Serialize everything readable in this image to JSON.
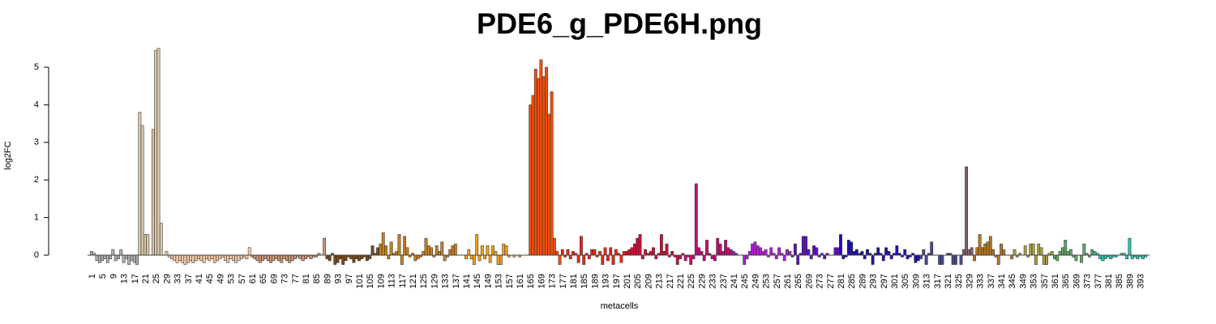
{
  "chart_data": {
    "type": "bar",
    "title": "PDE6_g_PDE6H.png",
    "x_label": "metacells",
    "y_label": "log2FC",
    "ylim": [
      -0.3,
      5.5
    ],
    "yticks": [
      0,
      1,
      2,
      3,
      4,
      5
    ],
    "categories": [
      "1",
      null,
      null,
      null,
      "5",
      null,
      null,
      null,
      "9",
      null,
      null,
      null,
      "13",
      null,
      null,
      null,
      "17",
      null,
      null,
      null,
      "21",
      null,
      null,
      null,
      "25",
      null,
      null,
      null,
      "29",
      null,
      null,
      null,
      "33",
      null,
      null,
      null,
      "37",
      null,
      null,
      null,
      "41",
      null,
      null,
      null,
      "45",
      null,
      null,
      null,
      "49",
      null,
      null,
      null,
      "53",
      null,
      null,
      null,
      "57",
      null,
      null,
      null,
      "61",
      null,
      null,
      null,
      "65",
      null,
      null,
      null,
      "69",
      null,
      null,
      null,
      "73",
      null,
      null,
      null,
      "77",
      null,
      null,
      null,
      "81",
      null,
      null,
      null,
      "85",
      null,
      null,
      null,
      "89",
      null,
      null,
      null,
      "93",
      null,
      null,
      null,
      "97",
      null,
      null,
      null,
      "101",
      null,
      null,
      null,
      "105",
      null,
      null,
      null,
      "109",
      null,
      null,
      null,
      "113",
      null,
      null,
      null,
      "117",
      null,
      null,
      null,
      "121",
      null,
      null,
      null,
      "125",
      null,
      null,
      null,
      "129",
      null,
      null,
      null,
      "133",
      null,
      null,
      null,
      "137",
      null,
      null,
      null,
      "141",
      null,
      null,
      null,
      "145",
      null,
      null,
      null,
      "149",
      null,
      null,
      null,
      "153",
      null,
      null,
      null,
      "157",
      null,
      null,
      null,
      "161",
      null,
      null,
      null,
      "165",
      null,
      null,
      null,
      "169",
      null,
      null,
      null,
      "173",
      null,
      null,
      null,
      "177",
      null,
      null,
      null,
      "181",
      null,
      null,
      null,
      "185",
      null,
      null,
      null,
      "189",
      null,
      null,
      null,
      "193",
      null,
      null,
      null,
      "197",
      null,
      null,
      null,
      "201",
      null,
      null,
      null,
      "205",
      null,
      null,
      null,
      "209",
      null,
      null,
      null,
      "213",
      null,
      null,
      null,
      "217",
      null,
      null,
      null,
      "221",
      null,
      null,
      null,
      "225",
      null,
      null,
      null,
      "229",
      null,
      null,
      null,
      "233",
      null,
      null,
      null,
      "237",
      null,
      null,
      null,
      "241",
      null,
      null,
      null,
      "245",
      null,
      null,
      null,
      "249",
      null,
      null,
      null,
      "253",
      null,
      null,
      null,
      "257",
      null,
      null,
      null,
      "261",
      null,
      null,
      null,
      "265",
      null,
      null,
      null,
      "269",
      null,
      null,
      null,
      "273",
      null,
      null,
      null,
      "277",
      null,
      null,
      null,
      "281",
      null,
      null,
      null,
      "285",
      null,
      null,
      null,
      "289",
      null,
      null,
      null,
      "293",
      null,
      null,
      null,
      "297",
      null,
      null,
      null,
      "301",
      null,
      null,
      null,
      "305",
      null,
      null,
      null,
      "309",
      null,
      null,
      null,
      "313",
      null,
      null,
      null,
      "317",
      null,
      null,
      null,
      "321",
      null,
      null,
      null,
      "325",
      null,
      null,
      null,
      "329",
      null,
      null,
      null,
      "333",
      null,
      null,
      null,
      "337",
      null,
      null,
      null,
      "341",
      null,
      null,
      null,
      "345",
      null,
      null,
      null,
      "349",
      null,
      null,
      null,
      "353",
      null,
      null,
      null,
      "357",
      null,
      null,
      null,
      "361",
      null,
      null,
      null,
      "365",
      null,
      null,
      null,
      "369",
      null,
      null,
      null,
      "373",
      null,
      null,
      null,
      "377",
      null,
      null,
      null,
      "381",
      null,
      null,
      null,
      "385",
      null,
      null,
      null,
      "389",
      null,
      null,
      null,
      "393",
      null,
      null
    ],
    "values": [
      0.1,
      0.05,
      -0.15,
      -0.2,
      -0.15,
      -0.1,
      -0.2,
      -0.1,
      0.15,
      -0.15,
      -0.1,
      0.15,
      -0.2,
      -0.1,
      -0.25,
      -0.15,
      -0.2,
      -0.25,
      3.8,
      3.45,
      0.55,
      0.55,
      0,
      3.35,
      5.45,
      5.5,
      0.85,
      0,
      0.1,
      -0.05,
      -0.1,
      -0.15,
      -0.2,
      -0.15,
      -0.2,
      -0.25,
      -0.2,
      -0.15,
      -0.2,
      -0.15,
      -0.1,
      -0.15,
      -0.2,
      -0.1,
      -0.15,
      -0.1,
      -0.2,
      -0.15,
      -0.1,
      -0.05,
      -0.15,
      -0.2,
      -0.1,
      -0.15,
      -0.2,
      -0.15,
      -0.1,
      -0.05,
      -0.1,
      0.2,
      -0.05,
      -0.1,
      -0.15,
      -0.2,
      -0.15,
      -0.1,
      -0.15,
      -0.2,
      -0.15,
      -0.1,
      -0.15,
      -0.2,
      -0.1,
      -0.15,
      -0.2,
      -0.15,
      -0.1,
      -0.05,
      -0.1,
      -0.15,
      -0.1,
      -0.05,
      -0.1,
      -0.05,
      -0.05,
      0.05,
      0,
      0.45,
      -0.1,
      -0.15,
      0.05,
      -0.25,
      -0.2,
      -0.1,
      -0.25,
      -0.15,
      -0.05,
      -0.1,
      -0.2,
      -0.1,
      -0.15,
      -0.1,
      -0.05,
      -0.15,
      -0.1,
      0.25,
      0.05,
      0.2,
      0.3,
      0.6,
      0.25,
      -0.1,
      0.35,
      0.05,
      0.1,
      0.55,
      -0.25,
      0.5,
      0.2,
      -0.05,
      0.05,
      -0.15,
      -0.1,
      -0.05,
      0.1,
      0.45,
      0.25,
      0.2,
      -0.05,
      0.25,
      0.1,
      0.35,
      -0.15,
      -0.05,
      0.15,
      0.25,
      0.3,
      0,
      0,
      0,
      -0.1,
      0.15,
      -0.1,
      -0.25,
      0.55,
      -0.15,
      0.25,
      -0.1,
      0.25,
      -0.2,
      0.25,
      0.1,
      -0.25,
      -0.25,
      0.3,
      0.25,
      -0.05,
      0,
      -0.05,
      0,
      -0.05,
      0,
      0,
      0,
      4.0,
      4.25,
      4.95,
      4.7,
      5.2,
      4.75,
      5.0,
      3.75,
      4.35,
      0.45,
      0.1,
      -0.25,
      0.15,
      -0.05,
      0.15,
      -0.1,
      0.1,
      0.05,
      -0.2,
      0.5,
      -0.25,
      0.05,
      -0.1,
      0.15,
      0.15,
      -0.05,
      0.1,
      -0.25,
      0.2,
      -0.15,
      0.2,
      -0.25,
      0.15,
      0.05,
      -0.2,
      0.1,
      0.1,
      0.15,
      0.2,
      0.3,
      0.45,
      0.55,
      -0.1,
      0.15,
      0.05,
      0.1,
      0.2,
      -0.1,
      0.05,
      0.55,
      0.1,
      0.3,
      -0.05,
      0.1,
      -0.05,
      -0.25,
      -0.1,
      0.05,
      -0.15,
      -0.05,
      -0.25,
      -0.1,
      1.9,
      0.2,
      0.1,
      -0.15,
      0.4,
      0.05,
      -0.1,
      -0.15,
      0.45,
      0.3,
      0.1,
      0.4,
      0.2,
      0.15,
      0.1,
      0.05,
      0,
      0,
      -0.25,
      -0.1,
      0.1,
      0.3,
      0.35,
      0.25,
      0.2,
      0.1,
      0.15,
      -0.05,
      0.2,
      0.05,
      -0.1,
      0.2,
      0.05,
      -0.15,
      0.15,
      0.1,
      -0.05,
      0.3,
      -0.25,
      0.05,
      0.5,
      0.5,
      0.15,
      -0.1,
      0.25,
      0.2,
      -0.05,
      0.05,
      -0.1,
      0.05,
      0,
      0,
      0.2,
      0.2,
      0.55,
      -0.1,
      -0.05,
      0.4,
      0.35,
      0.1,
      0.15,
      0.05,
      0.1,
      -0.1,
      0.15,
      0.05,
      -0.25,
      0.05,
      0.2,
      0.05,
      -0.15,
      0.2,
      0.1,
      -0.1,
      0.05,
      0.25,
      0.05,
      -0.05,
      0.15,
      -0.1,
      -0.05,
      0.05,
      -0.2,
      -0.15,
      -0.1,
      0.15,
      -0.25,
      0.05,
      0.35,
      0,
      0,
      -0.25,
      -0.25,
      0,
      0.05,
      0.05,
      -0.25,
      -0.25,
      0,
      -0.25,
      0.15,
      2.35,
      0.15,
      0.2,
      -0.15,
      0.2,
      0.55,
      0.2,
      0.3,
      0.35,
      0.5,
      0.15,
      -0.05,
      -0.25,
      0.3,
      0.15,
      0,
      0,
      -0.1,
      0.15,
      -0.05,
      0.05,
      0,
      0.25,
      -0.05,
      0.3,
      0.3,
      -0.25,
      0.3,
      0.2,
      -0.25,
      -0.25,
      0.05,
      0.1,
      -0.1,
      -0.15,
      0.1,
      0.2,
      0.4,
      0.1,
      0.15,
      -0.05,
      -0.15,
      0,
      -0.2,
      0.3,
      0.05,
      -0.05,
      0.15,
      0.1,
      0.05,
      -0.1,
      -0.15,
      -0.1,
      -0.05,
      -0.1,
      -0.05,
      -0.05,
      0,
      0.05,
      0.05,
      -0.1,
      0.45,
      -0.1,
      -0.05,
      -0.1,
      -0.05,
      -0.1,
      -0.05
    ],
    "colors": [
      "#b0b0b0",
      "#b0b0b0",
      "#b0b0b0",
      "#b0b0b0",
      "#b0b0b0",
      "#b0b0b0",
      "#b0b0b0",
      "#b0b0b0",
      "#b0b0b0",
      "#b0b0b0",
      "#b0b0b0",
      "#b0b0b0",
      "#b0b0b0",
      "#b0b0b0",
      "#b0b0b0",
      "#b0b0b0",
      "#b0b0b0",
      "#b0b0b0",
      "#d8c8a8",
      "#d8c8a8",
      "#d8c8a8",
      "#d8c8a8",
      "#d8c8a8",
      "#d8c8a8",
      "#d8c8a8",
      "#d8c8a8",
      "#d8c8a8",
      "#d8c8a8",
      "#f0c8a8",
      "#f0c8a8",
      "#f0c8a8",
      "#f0c8a8",
      "#f0c8a8",
      "#f0c8a8",
      "#f0c8a8",
      "#f0c8a8",
      "#f0c8a8",
      "#f0c8a8",
      "#f0c8a8",
      "#f0c8a8",
      "#f0c8a8",
      "#f0c8a8",
      "#f0c8a8",
      "#f0c8a8",
      "#f0c8a8",
      "#f0c8a8",
      "#f0c8a8",
      "#f0c8a8",
      "#f0c8a8",
      "#f0c8a8",
      "#f0c8a8",
      "#f0c8a8",
      "#f0c8a8",
      "#f0c8a8",
      "#f0c8a8",
      "#f0c8a8",
      "#f0c8a8",
      "#f0c8a8",
      "#f0c8a8",
      "#f0c8a8",
      "#c89878",
      "#c89878",
      "#c89878",
      "#c89878",
      "#c89878",
      "#c89878",
      "#c89878",
      "#c89878",
      "#c89878",
      "#c89878",
      "#c89878",
      "#c89878",
      "#c89878",
      "#c89878",
      "#c89878",
      "#c89878",
      "#c89878",
      "#c89878",
      "#c89878",
      "#c89878",
      "#c89878",
      "#c89878",
      "#c89878",
      "#c89878",
      "#c89878",
      "#c89878",
      "#c89878",
      "#c89878",
      "#7a4a20",
      "#7a4a20",
      "#7a4a20",
      "#7a4a20",
      "#7a4a20",
      "#7a4a20",
      "#7a4a20",
      "#7a4a20",
      "#7a4a20",
      "#7a4a20",
      "#7a4a20",
      "#7a4a20",
      "#7a4a20",
      "#7a4a20",
      "#7a4a20",
      "#7a4a20",
      "#7a4a20",
      "#7a4a20",
      "#7a4a20",
      "#7a4a20",
      "#c88020",
      "#c88020",
      "#c88020",
      "#c88020",
      "#c88020",
      "#c88020",
      "#c88020",
      "#c88020",
      "#c88020",
      "#c88020",
      "#c88020",
      "#c88020",
      "#c88020",
      "#c88020",
      "#c88020",
      "#c88020",
      "#c88020",
      "#c88020",
      "#c88020",
      "#c88020",
      "#c88020",
      "#c88020",
      "#c88020",
      "#c88020",
      "#c88020",
      "#c88020",
      "#c88020",
      "#c88020",
      "#c88020",
      "#c88020",
      "#c88020",
      "#c88020",
      "#f0a020",
      "#f0a020",
      "#f0a020",
      "#f0a020",
      "#f0a020",
      "#f0a020",
      "#f0a020",
      "#f0a020",
      "#f0a020",
      "#f0a020",
      "#f0a020",
      "#f0a020",
      "#f0a020",
      "#f0a020",
      "#f0a020",
      "#f0a020",
      "#f0a020",
      "#f0a020",
      "#f0a020",
      "#f0a020",
      "#f0a020",
      "#f0a020",
      "#f0a020",
      "#f0a020",
      "#f05010",
      "#f05010",
      "#f05010",
      "#f05010",
      "#f05010",
      "#f05010",
      "#f05010",
      "#f05010",
      "#f05010",
      "#f05010",
      "#f05010",
      "#f05010",
      "#e82818",
      "#e82818",
      "#e82818",
      "#e82818",
      "#e82818",
      "#e82818",
      "#e82818",
      "#e82818",
      "#e82818",
      "#e82818",
      "#e82818",
      "#e82818",
      "#e82818",
      "#e82818",
      "#e82818",
      "#e82818",
      "#e82818",
      "#e82818",
      "#e82818",
      "#e82818",
      "#e82818",
      "#e82818",
      "#e82818",
      "#e82818",
      "#d01038",
      "#d01038",
      "#d01038",
      "#d01038",
      "#d01038",
      "#d01038",
      "#d01038",
      "#d01038",
      "#d01038",
      "#d01038",
      "#d01038",
      "#d01038",
      "#d01038",
      "#d01038",
      "#d01038",
      "#d01038",
      "#d01038",
      "#d01038",
      "#d01038",
      "#d01038",
      "#c01070",
      "#c01070",
      "#c01070",
      "#c01070",
      "#c01070",
      "#c01070",
      "#c01070",
      "#c01070",
      "#c01070",
      "#c01070",
      "#c01070",
      "#c01070",
      "#c01070",
      "#c01070",
      "#c01070",
      "#c01070",
      "#c01070",
      "#c01070",
      "#c01070",
      "#c01070",
      "#b020d0",
      "#b020d0",
      "#b020d0",
      "#b020d0",
      "#b020d0",
      "#b020d0",
      "#b020d0",
      "#b020d0",
      "#b020d0",
      "#b020d0",
      "#b020d0",
      "#b020d0",
      "#b020d0",
      "#b020d0",
      "#b020d0",
      "#b020d0",
      "#b020d0",
      "#b020d0",
      "#b020d0",
      "#b020d0",
      "#b020d0",
      "#b020d0",
      "#6010c8",
      "#6010c8",
      "#6010c8",
      "#6010c8",
      "#6010c8",
      "#6010c8",
      "#6010c8",
      "#6010c8",
      "#6010c8",
      "#6010c8",
      "#6010c8",
      "#6010c8",
      "#6010c8",
      "#6010c8",
      "#6010c8",
      "#6010c8",
      "#6010c8",
      "#6010c8",
      "#2010b0",
      "#2010b0",
      "#2010b0",
      "#2010b0",
      "#2010b0",
      "#2010b0",
      "#2010b0",
      "#2010b0",
      "#2010b0",
      "#2010b0",
      "#2010b0",
      "#2010b0",
      "#2010b0",
      "#2010b0",
      "#2010b0",
      "#2010b0",
      "#2010b0",
      "#2010b0",
      "#2010b0",
      "#2010b0",
      "#2010b0",
      "#2010b0",
      "#2010b0",
      "#2010b0",
      "#2010b0",
      "#2010b0",
      "#2010b0",
      "#2010b0",
      "#2010b0",
      "#2010b0",
      "#484890",
      "#484890",
      "#484890",
      "#484890",
      "#484890",
      "#484890",
      "#484890",
      "#484890",
      "#484890",
      "#484890",
      "#484890",
      "#484890",
      "#484890",
      "#484890",
      "#484890",
      "#484890",
      "#806070",
      "#806070",
      "#806070",
      "#806070",
      "#b07828",
      "#b07828",
      "#b07828",
      "#b07828",
      "#b07828",
      "#b07828",
      "#b07828",
      "#b07828",
      "#b07828",
      "#b07828",
      "#b07828",
      "#b07828",
      "#b07828",
      "#b07828",
      "#b07828",
      "#a8a040",
      "#a8a040",
      "#a8a040",
      "#a8a040",
      "#a8a040",
      "#a8a040",
      "#a8a040",
      "#a8a040",
      "#a8a040",
      "#a8a040",
      "#a8a040",
      "#a8a040",
      "#a8a040",
      "#a8a040",
      "#a8a040",
      "#60a868",
      "#60a868",
      "#60a868",
      "#60a868",
      "#60a868",
      "#60a868",
      "#60a868",
      "#60a868",
      "#60a868",
      "#60a868",
      "#60a868",
      "#60a868",
      "#60a868",
      "#60a868",
      "#60a868",
      "#30c0b0",
      "#30c0b0",
      "#30c0b0",
      "#30c0b0",
      "#30c0b0",
      "#30c0b0",
      "#30c0b0",
      "#30c0b0",
      "#30c0b0",
      "#30c0b0",
      "#30c0b0",
      "#30c0b0",
      "#30c0b0",
      "#30c0b0",
      "#30c0b0",
      "#30c0b0",
      "#30c0b0",
      "#30c0b0",
      "#30c0b0",
      "#30c0b0"
    ]
  }
}
